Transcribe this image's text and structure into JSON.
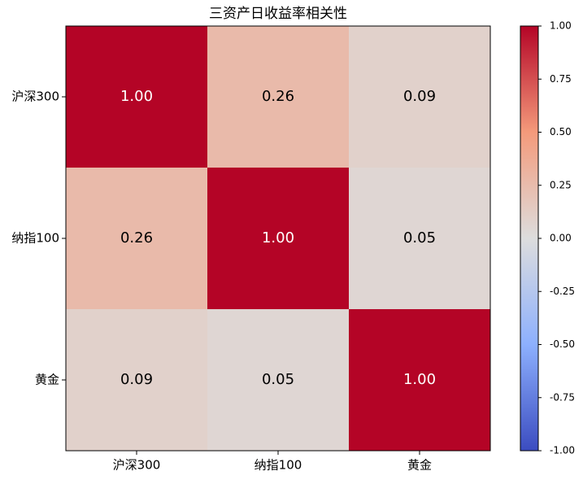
{
  "chart_data": {
    "type": "heatmap",
    "title": "三资产日收益率相关性",
    "x_categories": [
      "沪深300",
      "纳指100",
      "黄金"
    ],
    "y_categories": [
      "沪深300",
      "纳指100",
      "黄金"
    ],
    "values": [
      [
        1.0,
        0.26,
        0.09
      ],
      [
        0.26,
        1.0,
        0.05
      ],
      [
        0.09,
        0.05,
        1.0
      ]
    ],
    "value_labels": [
      [
        "1.00",
        "0.26",
        "0.09"
      ],
      [
        "0.26",
        "1.00",
        "0.05"
      ],
      [
        "0.09",
        "0.05",
        "1.00"
      ]
    ],
    "colormap": "coolwarm",
    "clim": [
      -1,
      1
    ],
    "cticks": [
      {
        "value": -1,
        "label": "-1.00"
      },
      -0.75,
      {
        "value": -0.5,
        "label": "-0.50"
      },
      -0.25,
      {
        "value": 0,
        "label": "0.00"
      },
      0.25,
      {
        "value": 0.5,
        "label": "0.50"
      },
      0.75,
      {
        "value": 1,
        "label": "1.00"
      }
    ]
  }
}
